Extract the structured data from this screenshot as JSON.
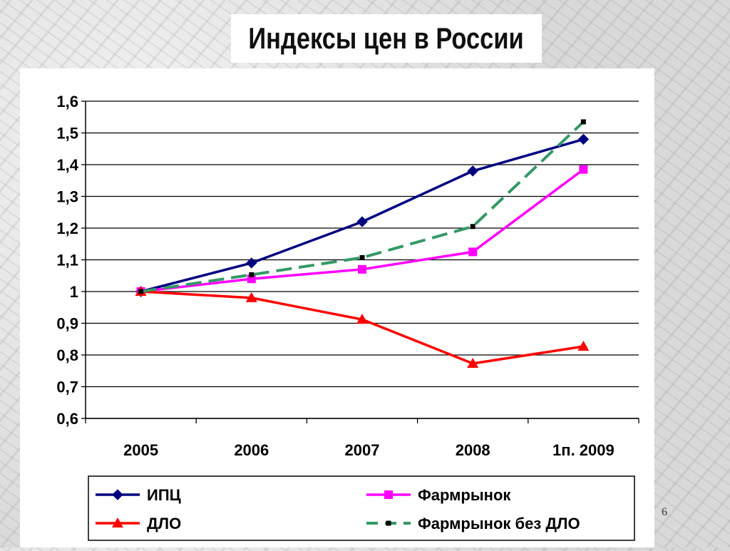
{
  "slide": {
    "title": "Индексы цен в России",
    "page_number": "6"
  },
  "chart_data": {
    "type": "line",
    "title": "",
    "xlabel": "",
    "ylabel": "",
    "categories": [
      "2005",
      "2006",
      "2007",
      "2008",
      "1п. 2009"
    ],
    "ylim": [
      0.6,
      1.6
    ],
    "yticks": [
      "1,6",
      "1,5",
      "1,4",
      "1,3",
      "1,2",
      "1,1",
      "1",
      "0,9",
      "0,8",
      "0,7",
      "0,6"
    ],
    "grid": true,
    "legend_position": "bottom",
    "series": [
      {
        "name": "ИПЦ",
        "values": [
          1.0,
          1.09,
          1.22,
          1.38,
          1.48
        ],
        "color": "#000080",
        "marker": "diamond",
        "dash": "solid"
      },
      {
        "name": "Фармрынок",
        "values": [
          1.0,
          1.04,
          1.07,
          1.125,
          1.385
        ],
        "color": "#FF00FF",
        "marker": "square",
        "dash": "solid"
      },
      {
        "name": "ДЛО",
        "values": [
          1.0,
          0.98,
          0.912,
          0.773,
          0.827
        ],
        "color": "#FF0000",
        "marker": "triangle",
        "dash": "solid"
      },
      {
        "name": "Фармрынок без ДЛО",
        "values": [
          1.0,
          1.053,
          1.107,
          1.205,
          1.535
        ],
        "color": "#339966",
        "marker": "square-small",
        "dash": "dashed"
      }
    ]
  }
}
